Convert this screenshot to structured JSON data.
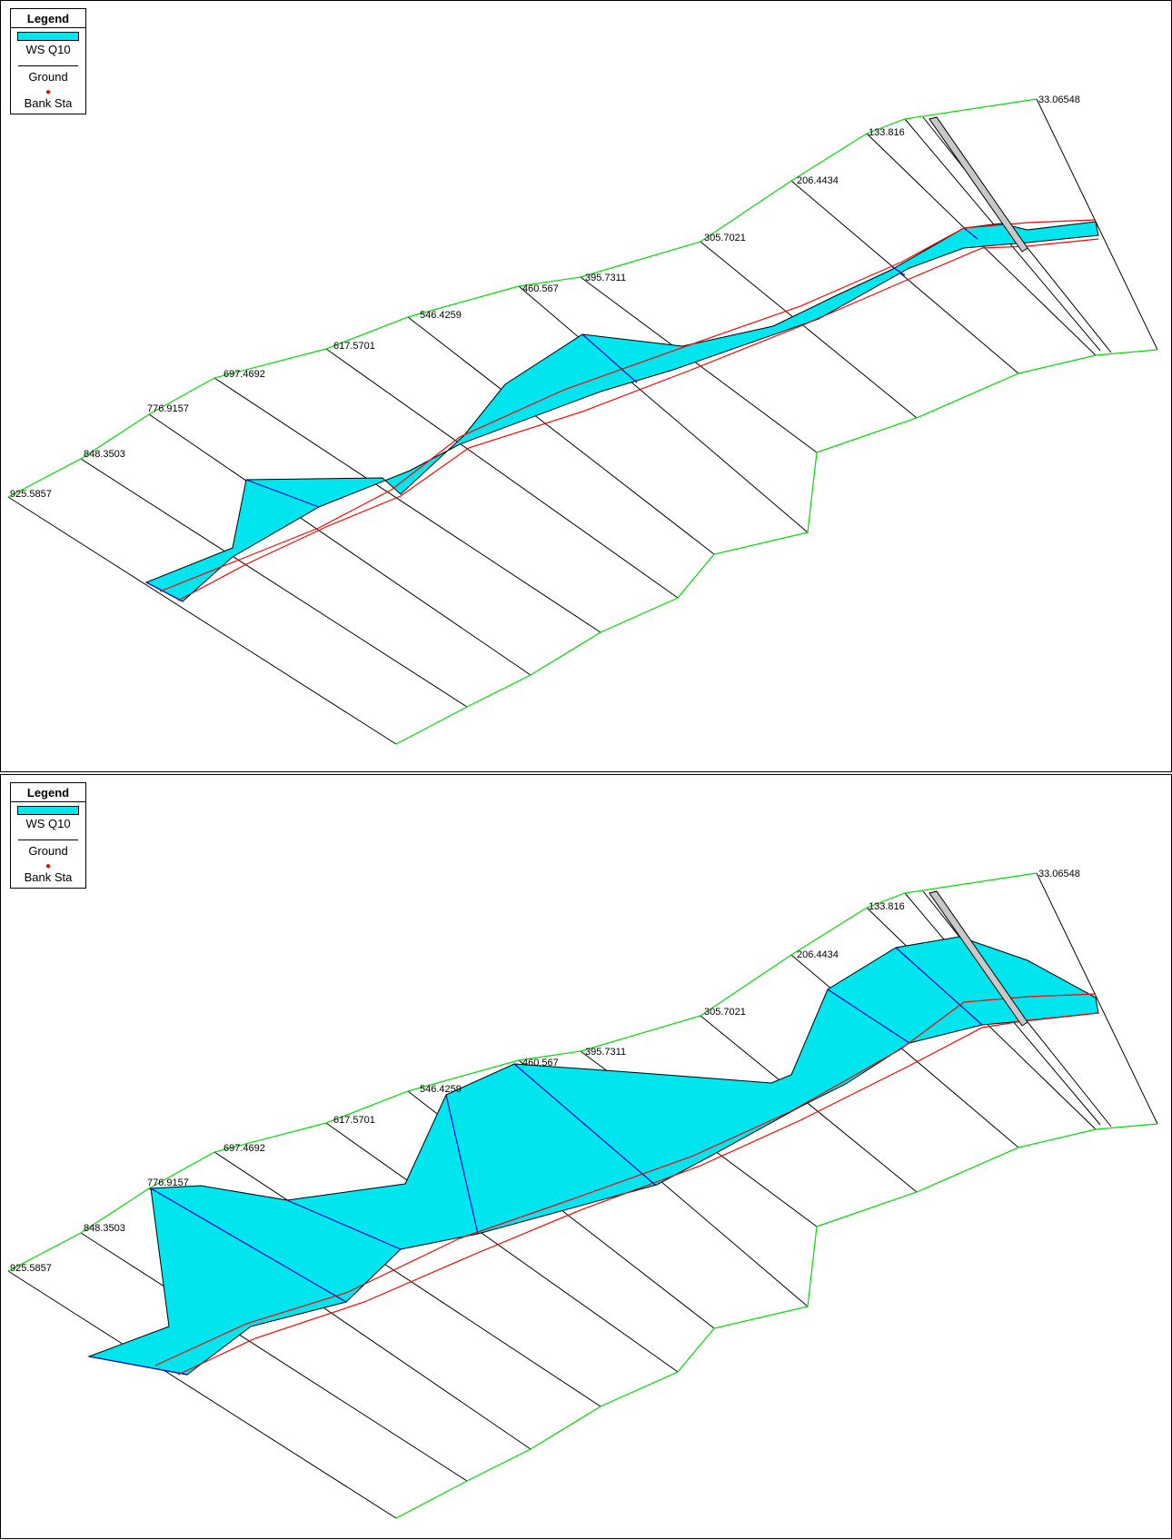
{
  "legend": {
    "title": "Legend",
    "items": [
      {
        "label": "WS Q10",
        "color": "#00e5ee"
      },
      {
        "label": "Ground",
        "color": "#000000"
      },
      {
        "label": "Bank Sta",
        "color": "#ff0000"
      }
    ]
  },
  "colors": {
    "water": "#00e5ee",
    "ground_line": "#000000",
    "boundary": "#00dd00",
    "bank": "#ff0000",
    "channel": "#0000cc",
    "bridge": "#c8c8c8"
  },
  "cross_sections": [
    "925.5857",
    "848.3503",
    "776.9157",
    "697.4692",
    "617.5701",
    "546.4259",
    "460.567",
    "395.7311",
    "305.7021",
    "206.4434",
    "133.816",
    "33.06548"
  ]
}
